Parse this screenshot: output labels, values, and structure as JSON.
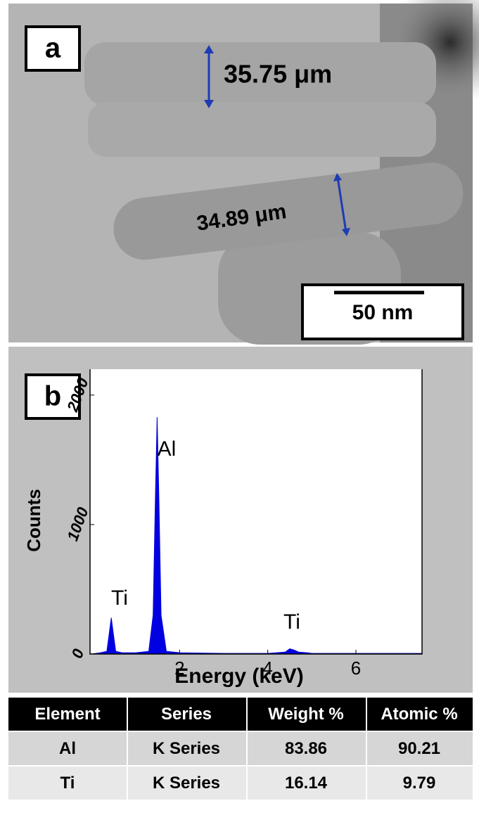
{
  "panel_a": {
    "label": "a",
    "measure_1": "35.75 μm",
    "measure_2": "34.89 μm",
    "scale_bar": "50 nm"
  },
  "chart_data": {
    "type": "area",
    "panel_label": "b",
    "x_label": "Energy (keV)",
    "y_label": "Counts",
    "color": "#0000e0",
    "x": [
      0.0,
      0.2,
      0.35,
      0.4,
      0.45,
      0.5,
      0.55,
      0.7,
      1.0,
      1.3,
      1.4,
      1.45,
      1.49,
      1.53,
      1.58,
      1.7,
      2.0,
      3.0,
      4.0,
      4.4,
      4.5,
      4.6,
      4.7,
      4.9,
      5.0,
      6.0,
      7.5
    ],
    "values": [
      0,
      10,
      20,
      150,
      280,
      150,
      20,
      10,
      10,
      20,
      300,
      1200,
      1830,
      1200,
      300,
      20,
      10,
      5,
      5,
      15,
      40,
      30,
      15,
      10,
      5,
      5,
      5
    ],
    "xlim": [
      0,
      7.5
    ],
    "xticks": [
      2,
      4,
      6
    ],
    "ylim": [
      0,
      2200
    ],
    "yticks": [
      0,
      1000,
      2000
    ],
    "annotations": [
      "Ti",
      "Al",
      "Ti"
    ]
  },
  "table": {
    "header": [
      "Element",
      "Series",
      "Weight %",
      "Atomic %"
    ],
    "rows": [
      [
        "Al",
        "K Series",
        83.86,
        90.21
      ],
      [
        "Ti",
        "K Series",
        16.14,
        9.79
      ]
    ]
  }
}
